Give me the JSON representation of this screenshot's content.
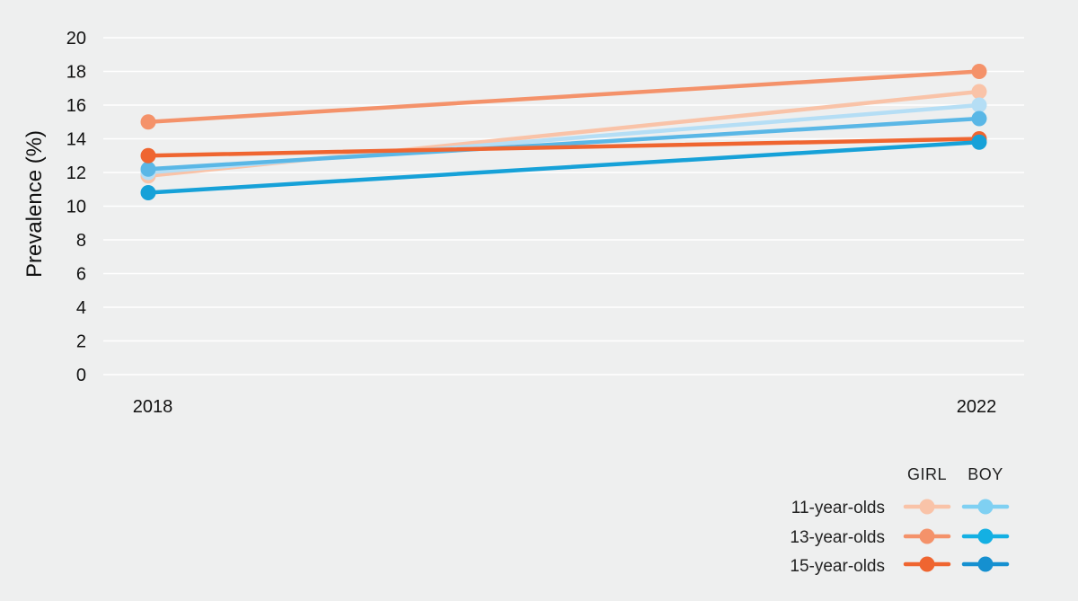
{
  "chart_data": {
    "type": "line",
    "x": [
      "2018",
      "2022"
    ],
    "ylabel": "Prevalence (%)",
    "ylim": [
      0,
      20
    ],
    "yticks": [
      0,
      2,
      4,
      6,
      8,
      10,
      12,
      14,
      16,
      18,
      20
    ],
    "grid": true,
    "legend": {
      "placement": "bottom-right",
      "column_headers": [
        "GIRL",
        "BOY"
      ],
      "row_labels": [
        "11-year-olds",
        "13-year-olds",
        "15-year-olds"
      ]
    },
    "series": [
      {
        "group": "GIRL",
        "age": "11-year-olds",
        "color": "#f9c3a8",
        "values": [
          11.8,
          16.8
        ]
      },
      {
        "group": "BOY",
        "age": "11-year-olds",
        "color": "#b5def5",
        "values": [
          12.0,
          16.0
        ]
      },
      {
        "group": "BOY",
        "age": "13-year-olds",
        "color": "#5ab7e6",
        "values": [
          12.2,
          15.2
        ]
      },
      {
        "group": "GIRL",
        "age": "13-year-olds",
        "color": "#f4926a",
        "values": [
          15.0,
          18.0
        ]
      },
      {
        "group": "GIRL",
        "age": "15-year-olds",
        "color": "#ef6530",
        "values": [
          13.0,
          14.0
        ]
      },
      {
        "group": "BOY",
        "age": "15-year-olds",
        "color": "#16a1d8",
        "values": [
          10.8,
          13.8
        ]
      }
    ],
    "legend_colors": {
      "11-year-olds": {
        "GIRL": "#f9c3a8",
        "BOY": "#7fd0f2"
      },
      "13-year-olds": {
        "GIRL": "#f4926a",
        "BOY": "#14b0e3"
      },
      "15-year-olds": {
        "GIRL": "#ef6530",
        "BOY": "#1590d0"
      }
    }
  }
}
